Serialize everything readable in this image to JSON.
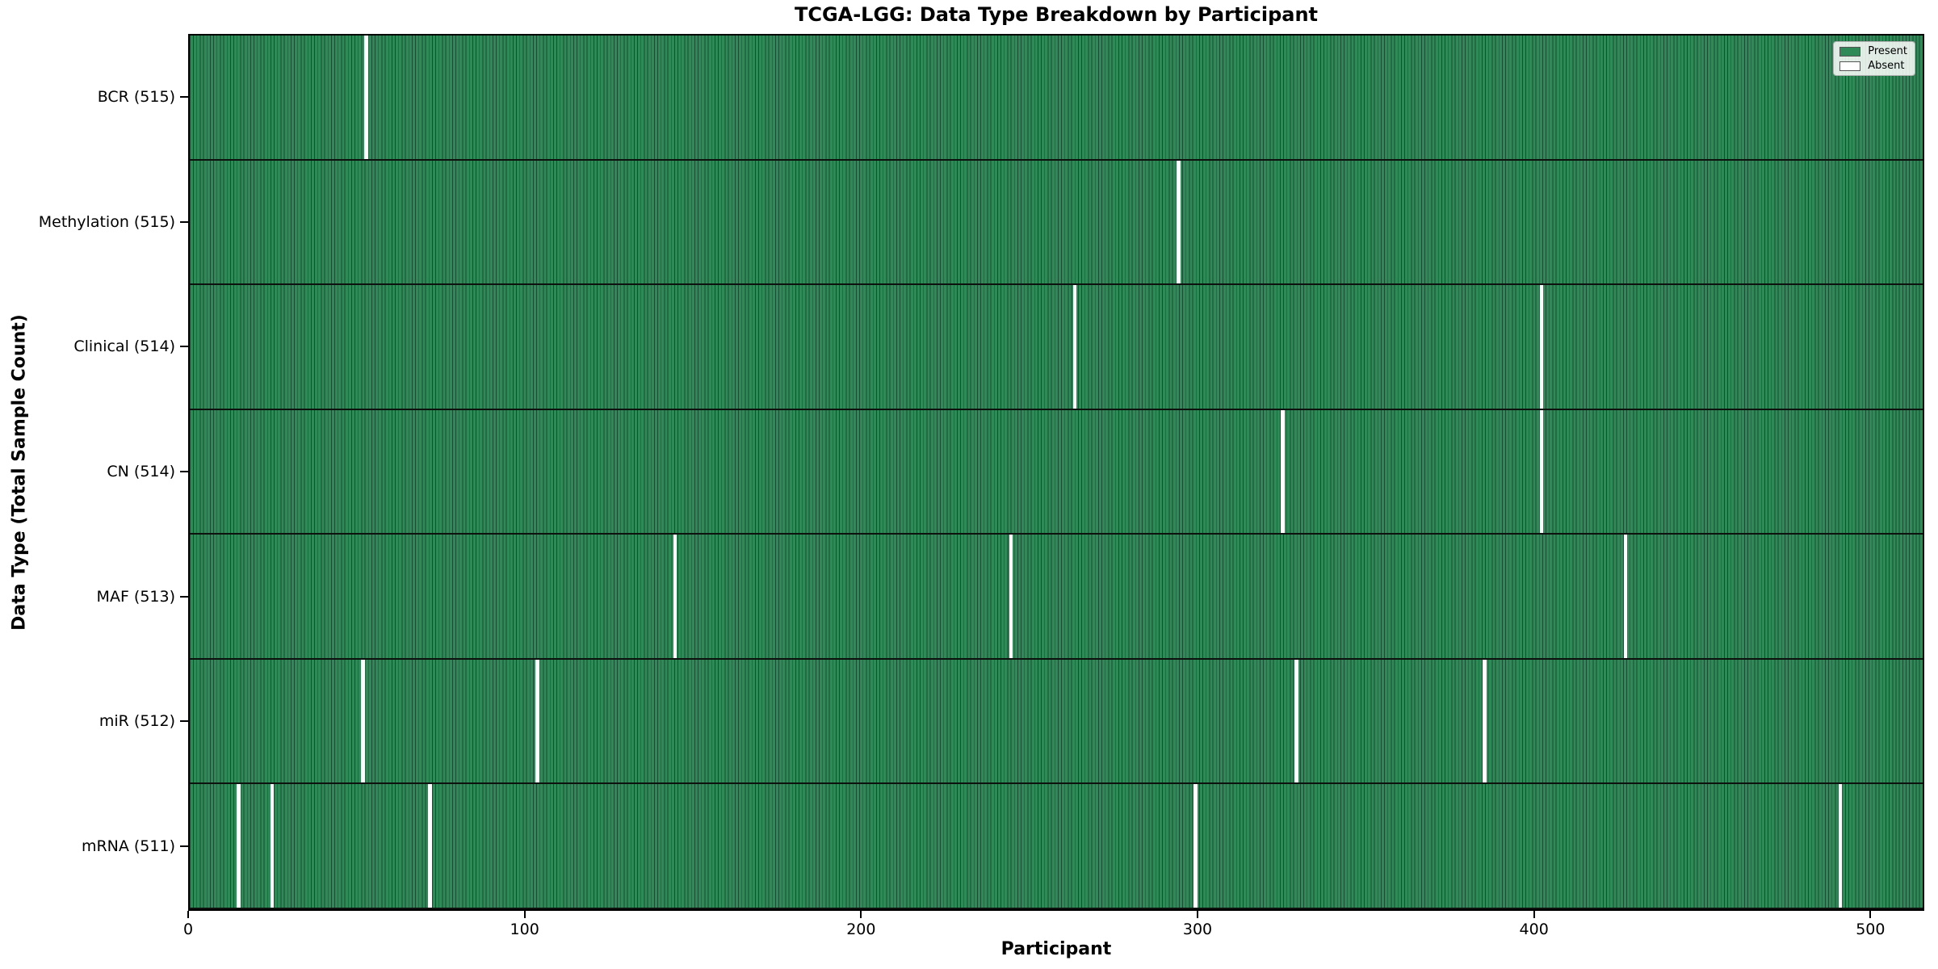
{
  "chart_data": {
    "type": "heatmap",
    "title": "TCGA-LGG: Data Type Breakdown by Participant",
    "xlabel": "Participant",
    "ylabel": "Data Type (Total Sample Count)",
    "xlim": [
      0,
      516
    ],
    "x_ticks": [
      "0",
      "100",
      "200",
      "300",
      "400",
      "500"
    ],
    "x_tick_values": [
      0,
      100,
      200,
      300,
      400,
      500
    ],
    "total_participants": 516,
    "grid": false,
    "legend": {
      "position": "upper right",
      "entries": [
        {
          "label": "Present",
          "color": "#2e8b57"
        },
        {
          "label": "Absent",
          "color": "#ffffff"
        }
      ]
    },
    "colors": {
      "present": "#2e8b57",
      "absent": "#ffffff",
      "cell_edge": "#1d4a33",
      "row_divider": "#0d120e"
    },
    "rows": [
      {
        "label": "BCR (515)",
        "data_type": "BCR",
        "present_count": 515,
        "absent_participants": [
          52
        ]
      },
      {
        "label": "Methylation (515)",
        "data_type": "Methylation",
        "present_count": 515,
        "absent_participants": [
          294
        ]
      },
      {
        "label": "Clinical (514)",
        "data_type": "Clinical",
        "present_count": 514,
        "absent_participants": [
          263,
          402
        ]
      },
      {
        "label": "CN (514)",
        "data_type": "CN",
        "present_count": 514,
        "absent_participants": [
          325,
          402
        ]
      },
      {
        "label": "MAF (513)",
        "data_type": "MAF",
        "present_count": 513,
        "absent_participants": [
          144,
          244,
          427
        ]
      },
      {
        "label": "miR (512)",
        "data_type": "miR",
        "present_count": 512,
        "absent_participants": [
          51,
          103,
          329,
          385
        ]
      },
      {
        "label": "mRNA (511)",
        "data_type": "mRNA",
        "present_count": 511,
        "absent_participants": [
          14,
          24,
          71,
          299,
          491
        ]
      }
    ]
  }
}
